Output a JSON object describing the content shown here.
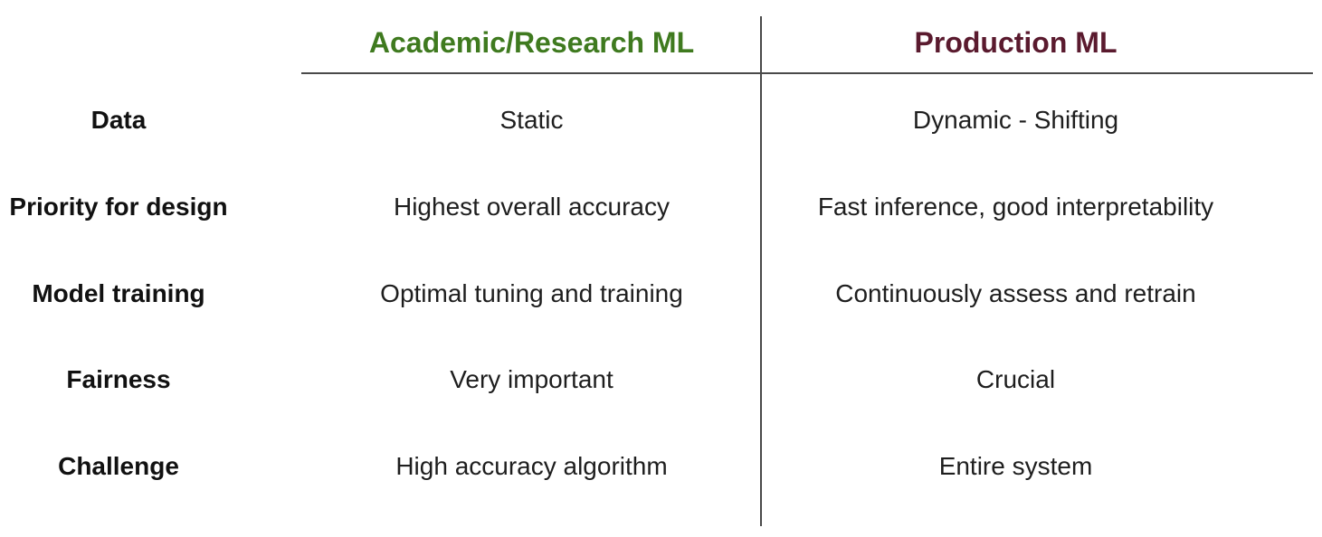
{
  "colors": {
    "academic_header": "#3f7a1f",
    "production_header": "#5a1a2e"
  },
  "headers": {
    "academic": "Academic/Research ML",
    "production": "Production ML"
  },
  "rows": [
    {
      "label": "Data",
      "academic": "Static",
      "production": "Dynamic - Shifting"
    },
    {
      "label": "Priority for design",
      "academic": "Highest overall accuracy",
      "production": "Fast inference, good interpretability"
    },
    {
      "label": "Model training",
      "academic": "Optimal tuning and training",
      "production": "Continuously assess and retrain"
    },
    {
      "label": "Fairness",
      "academic": "Very important",
      "production": "Crucial"
    },
    {
      "label": "Challenge",
      "academic": "High accuracy algorithm",
      "production": "Entire system"
    }
  ]
}
